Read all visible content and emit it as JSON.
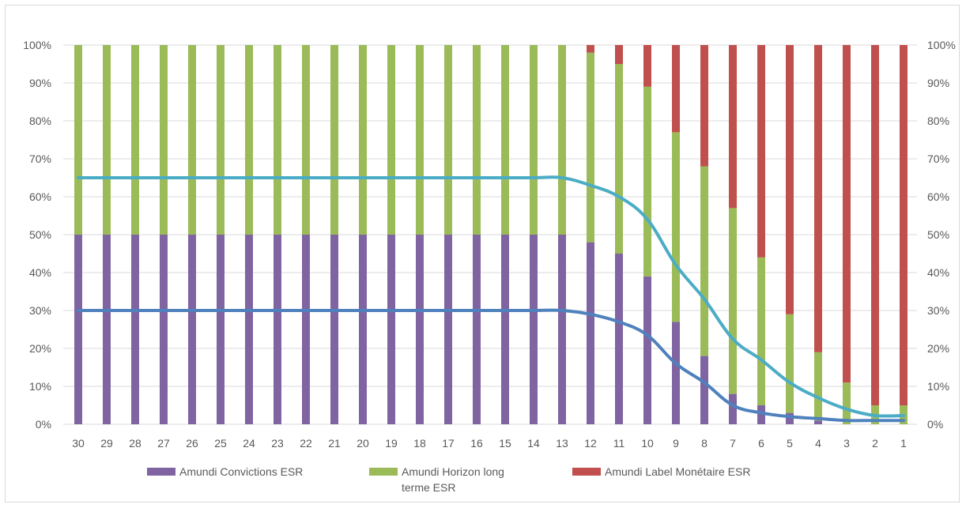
{
  "chart_data": {
    "type": "bar",
    "stacked": true,
    "categories": [
      "30",
      "29",
      "28",
      "27",
      "26",
      "25",
      "24",
      "23",
      "22",
      "21",
      "20",
      "19",
      "18",
      "17",
      "16",
      "15",
      "14",
      "13",
      "12",
      "11",
      "10",
      "9",
      "8",
      "7",
      "6",
      "5",
      "4",
      "3",
      "2",
      "1"
    ],
    "series": [
      {
        "name": "Amundi Convictions ESR",
        "color": "#8064a2",
        "values": [
          50,
          50,
          50,
          50,
          50,
          50,
          50,
          50,
          50,
          50,
          50,
          50,
          50,
          50,
          50,
          50,
          50,
          50,
          48,
          45,
          39,
          27,
          18,
          8,
          5,
          3,
          1,
          0,
          0,
          0
        ]
      },
      {
        "name": "Amundi Horizon long terme ESR",
        "color": "#9bbb59",
        "values": [
          50,
          50,
          50,
          50,
          50,
          50,
          50,
          50,
          50,
          50,
          50,
          50,
          50,
          50,
          50,
          50,
          50,
          50,
          50,
          50,
          50,
          50,
          50,
          49,
          39,
          26,
          18,
          11,
          5,
          5
        ]
      },
      {
        "name": "Amundi Label Monétaire ESR",
        "color": "#c0504d",
        "values": [
          0,
          0,
          0,
          0,
          0,
          0,
          0,
          0,
          0,
          0,
          0,
          0,
          0,
          0,
          0,
          0,
          0,
          0,
          2,
          5,
          11,
          23,
          32,
          43,
          56,
          71,
          81,
          89,
          95,
          95
        ]
      }
    ],
    "lines": [
      {
        "color": "#4bacc6",
        "values": [
          65,
          65,
          65,
          65,
          65,
          65,
          65,
          65,
          65,
          65,
          65,
          65,
          65,
          65,
          65,
          65,
          65,
          65,
          63,
          60,
          54,
          42,
          33,
          22.5,
          17,
          11,
          7,
          4,
          2.3,
          2.3
        ]
      },
      {
        "color": "#4f81bd",
        "values": [
          30,
          30,
          30,
          30,
          30,
          30,
          30,
          30,
          30,
          30,
          30,
          30,
          30,
          30,
          30,
          30,
          30,
          30,
          29,
          27,
          23.5,
          16,
          11,
          5,
          3,
          2,
          1.5,
          1,
          1,
          1
        ]
      }
    ],
    "y_ticks": [
      "0%",
      "10%",
      "20%",
      "30%",
      "40%",
      "50%",
      "60%",
      "70%",
      "80%",
      "90%",
      "100%"
    ],
    "ylim": [
      0,
      100
    ],
    "secondary_ylim": [
      0,
      100
    ],
    "grid": true,
    "legend_position": "bottom",
    "legend_labels": [
      [
        "Amundi Convictions ESR"
      ],
      [
        "Amundi Horizon long",
        "terme ESR"
      ],
      [
        "Amundi Label Monétaire ESR"
      ]
    ]
  },
  "colors": {
    "grid": "#d9d9d9",
    "text": "#595959"
  }
}
